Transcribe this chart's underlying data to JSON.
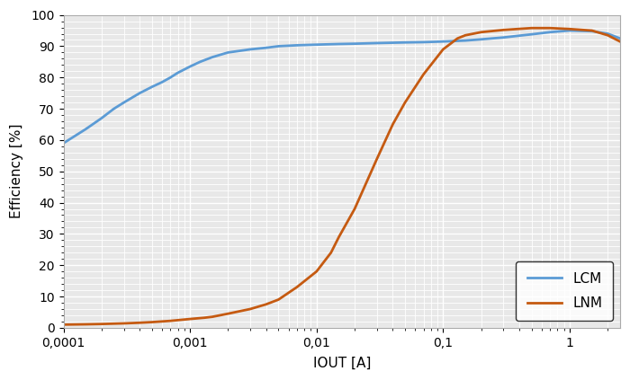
{
  "title": "",
  "xlabel": "IOUT [A]",
  "ylabel": "Efficiency [%]",
  "xlim": [
    0.0001,
    2.5
  ],
  "ylim": [
    0,
    100
  ],
  "yticks": [
    0,
    10,
    20,
    30,
    40,
    50,
    60,
    70,
    80,
    90,
    100
  ],
  "xtick_labels": [
    "0,0001",
    "0,001",
    "0,01",
    "0,1",
    "1"
  ],
  "xtick_vals": [
    0.0001,
    0.001,
    0.01,
    0.1,
    1.0
  ],
  "lcm_color": "#5B9BD5",
  "lnm_color": "#C55A11",
  "plot_bg_color": "#E8E8E8",
  "fig_bg_color": "#FFFFFF",
  "grid_color": "#FFFFFF",
  "legend_loc": "lower right",
  "lcm_x": [
    0.0001,
    0.00015,
    0.0002,
    0.00025,
    0.0003,
    0.0004,
    0.0005,
    0.0006,
    0.0007,
    0.0008,
    0.001,
    0.0012,
    0.0015,
    0.002,
    0.003,
    0.004,
    0.005,
    0.007,
    0.01,
    0.015,
    0.02,
    0.03,
    0.05,
    0.07,
    0.1,
    0.15,
    0.2,
    0.3,
    0.5,
    0.7,
    1.0,
    1.5,
    2.0,
    2.5
  ],
  "lcm_y": [
    59.0,
    63.5,
    67.0,
    70.0,
    72.0,
    75.0,
    77.0,
    78.5,
    80.0,
    81.5,
    83.5,
    85.0,
    86.5,
    88.0,
    89.0,
    89.5,
    90.0,
    90.3,
    90.5,
    90.7,
    90.8,
    91.0,
    91.2,
    91.3,
    91.5,
    91.8,
    92.2,
    92.8,
    93.8,
    94.5,
    95.0,
    94.8,
    94.0,
    92.5
  ],
  "lnm_x": [
    0.0001,
    0.00015,
    0.0002,
    0.0003,
    0.0004,
    0.0005,
    0.0007,
    0.001,
    0.0013,
    0.0015,
    0.002,
    0.003,
    0.004,
    0.005,
    0.007,
    0.01,
    0.013,
    0.015,
    0.02,
    0.03,
    0.04,
    0.05,
    0.07,
    0.1,
    0.13,
    0.15,
    0.2,
    0.3,
    0.5,
    0.7,
    1.0,
    1.5,
    2.0,
    2.5
  ],
  "lnm_y": [
    1.0,
    1.1,
    1.2,
    1.4,
    1.6,
    1.8,
    2.2,
    2.8,
    3.2,
    3.5,
    4.5,
    6.0,
    7.5,
    9.0,
    13.0,
    18.0,
    24.0,
    29.0,
    38.0,
    54.0,
    65.0,
    72.0,
    81.0,
    89.0,
    92.5,
    93.5,
    94.5,
    95.2,
    95.8,
    95.8,
    95.5,
    95.0,
    93.5,
    91.5
  ]
}
